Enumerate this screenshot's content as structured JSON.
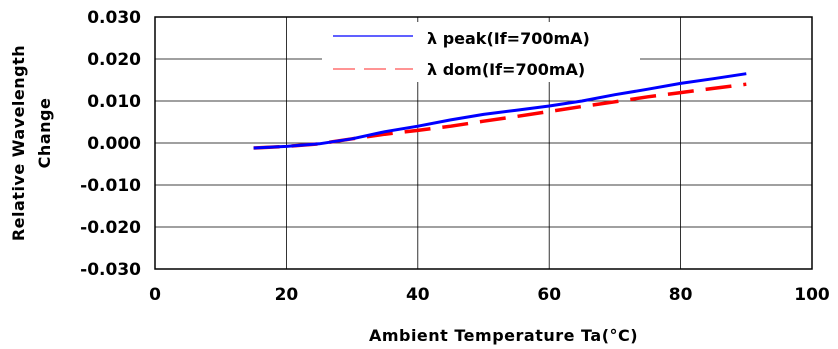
{
  "chart_data": {
    "type": "line",
    "xlabel": "Ambient Temperature Ta(°C)",
    "ylabel_lines": [
      "Relative Wavelength",
      "Change"
    ],
    "xlim": [
      0,
      100
    ],
    "ylim": [
      -0.03,
      0.03
    ],
    "x_ticks": [
      "0",
      "20",
      "40",
      "60",
      "80",
      "100"
    ],
    "y_ticks": [
      "0.030",
      "0.020",
      "0.010",
      "0.000",
      "-0.010",
      "-0.020",
      "-0.030"
    ],
    "grid": true,
    "legend_position": "top-center",
    "series": [
      {
        "name": "λ peak(If=700mA)",
        "color": "#0000ff",
        "style": "solid",
        "x": [
          15,
          20,
          25,
          30,
          35,
          40,
          45,
          50,
          55,
          60,
          65,
          70,
          75,
          80,
          85,
          90
        ],
        "y": [
          -0.0012,
          -0.0008,
          -0.0002,
          0.001,
          0.0027,
          0.004,
          0.0055,
          0.0068,
          0.0078,
          0.0088,
          0.01,
          0.0115,
          0.0128,
          0.0142,
          0.0153,
          0.0165
        ]
      },
      {
        "name": "λ dom(If=700mA)",
        "color": "#ff0000",
        "style": "dashed",
        "x": [
          15,
          20,
          25,
          30,
          35,
          40,
          45,
          50,
          55,
          60,
          65,
          70,
          75,
          80,
          85,
          90
        ],
        "y": [
          -0.0012,
          -0.0008,
          -0.0002,
          0.001,
          0.0021,
          0.003,
          0.004,
          0.0052,
          0.0063,
          0.0075,
          0.0087,
          0.0098,
          0.011,
          0.012,
          0.013,
          0.014
        ]
      }
    ]
  }
}
